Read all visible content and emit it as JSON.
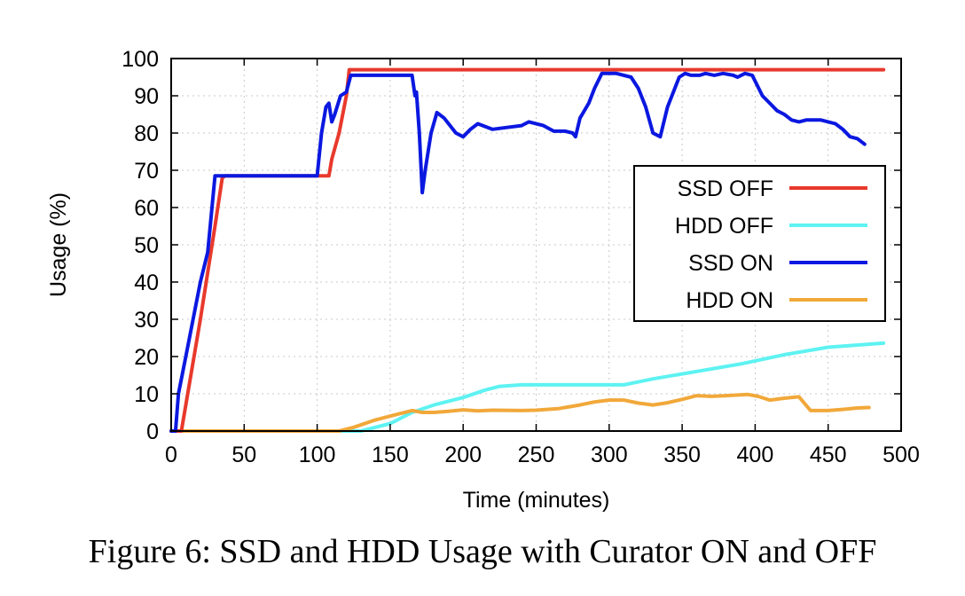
{
  "caption": "Figure 6: SSD and HDD Usage with Curator ON and OFF",
  "chart_data": {
    "type": "line",
    "xlabel": "Time (minutes)",
    "ylabel": "Usage (%)",
    "xlim": [
      0,
      500
    ],
    "ylim": [
      0,
      100
    ],
    "xticks": [
      0,
      50,
      100,
      150,
      200,
      250,
      300,
      350,
      400,
      450,
      500
    ],
    "yticks": [
      0,
      10,
      20,
      30,
      40,
      50,
      60,
      70,
      80,
      90,
      100
    ],
    "grid": true,
    "legend_position": "right",
    "series": [
      {
        "name": "SSD OFF",
        "color": "#e8392c",
        "points": [
          [
            0,
            0
          ],
          [
            7,
            0
          ],
          [
            20,
            30
          ],
          [
            30,
            55
          ],
          [
            35,
            68
          ],
          [
            37,
            68.5
          ],
          [
            100,
            68.5
          ],
          [
            108,
            68.5
          ],
          [
            110,
            73
          ],
          [
            115,
            80
          ],
          [
            120,
            90
          ],
          [
            122,
            97
          ],
          [
            488,
            97
          ]
        ]
      },
      {
        "name": "HDD OFF",
        "color": "#5ef2f2",
        "points": [
          [
            0,
            0
          ],
          [
            130,
            0
          ],
          [
            150,
            2
          ],
          [
            165,
            5
          ],
          [
            180,
            7
          ],
          [
            200,
            9
          ],
          [
            215,
            11
          ],
          [
            225,
            12
          ],
          [
            240,
            12.4
          ],
          [
            300,
            12.4
          ],
          [
            310,
            12.4
          ],
          [
            330,
            14
          ],
          [
            360,
            16
          ],
          [
            390,
            18
          ],
          [
            420,
            20.5
          ],
          [
            450,
            22.5
          ],
          [
            488,
            23.6
          ]
        ]
      },
      {
        "name": "SSD ON",
        "color": "#0b18e0",
        "points": [
          [
            0,
            0
          ],
          [
            3,
            0
          ],
          [
            5,
            10
          ],
          [
            10,
            20
          ],
          [
            20,
            40
          ],
          [
            25,
            48
          ],
          [
            30,
            68.5
          ],
          [
            35,
            68.5
          ],
          [
            100,
            68.5
          ],
          [
            103,
            80
          ],
          [
            106,
            87
          ],
          [
            108,
            88
          ],
          [
            110,
            83
          ],
          [
            112,
            85
          ],
          [
            116,
            90
          ],
          [
            120,
            91
          ],
          [
            123,
            95.5
          ],
          [
            125,
            95.5
          ],
          [
            150,
            95.5
          ],
          [
            165,
            95.5
          ],
          [
            167,
            90
          ],
          [
            168,
            91
          ],
          [
            170,
            80
          ],
          [
            172,
            64
          ],
          [
            174,
            70
          ],
          [
            178,
            80
          ],
          [
            182,
            85.5
          ],
          [
            187,
            84
          ],
          [
            195,
            80
          ],
          [
            200,
            79
          ],
          [
            205,
            81
          ],
          [
            210,
            82.5
          ],
          [
            220,
            81
          ],
          [
            230,
            81.5
          ],
          [
            240,
            82
          ],
          [
            245,
            83
          ],
          [
            255,
            82
          ],
          [
            262,
            80.5
          ],
          [
            270,
            80.5
          ],
          [
            275,
            80
          ],
          [
            277,
            79
          ],
          [
            280,
            84
          ],
          [
            286,
            88
          ],
          [
            290,
            92
          ],
          [
            295,
            96
          ],
          [
            305,
            96
          ],
          [
            315,
            95
          ],
          [
            320,
            92
          ],
          [
            325,
            87
          ],
          [
            330,
            80
          ],
          [
            335,
            79
          ],
          [
            340,
            87
          ],
          [
            348,
            95
          ],
          [
            352,
            96
          ],
          [
            356,
            95.5
          ],
          [
            362,
            95.5
          ],
          [
            366,
            96
          ],
          [
            372,
            95.5
          ],
          [
            378,
            96
          ],
          [
            385,
            95.5
          ],
          [
            388,
            95
          ],
          [
            393,
            96
          ],
          [
            398,
            95.5
          ],
          [
            405,
            90
          ],
          [
            410,
            88
          ],
          [
            415,
            86
          ],
          [
            420,
            85
          ],
          [
            425,
            83.5
          ],
          [
            430,
            83
          ],
          [
            435,
            83.5
          ],
          [
            445,
            83.5
          ],
          [
            455,
            82.5
          ],
          [
            460,
            81
          ],
          [
            465,
            79
          ],
          [
            470,
            78.5
          ],
          [
            475,
            77
          ]
        ]
      },
      {
        "name": "HDD ON",
        "color": "#f1a83a",
        "points": [
          [
            0,
            0
          ],
          [
            115,
            0
          ],
          [
            125,
            1
          ],
          [
            140,
            3
          ],
          [
            155,
            4.5
          ],
          [
            165,
            5.5
          ],
          [
            172,
            5
          ],
          [
            180,
            5
          ],
          [
            190,
            5.3
          ],
          [
            200,
            5.7
          ],
          [
            210,
            5.4
          ],
          [
            220,
            5.6
          ],
          [
            240,
            5.5
          ],
          [
            250,
            5.6
          ],
          [
            265,
            6
          ],
          [
            280,
            7
          ],
          [
            290,
            7.8
          ],
          [
            300,
            8.3
          ],
          [
            310,
            8.3
          ],
          [
            320,
            7.5
          ],
          [
            330,
            7
          ],
          [
            340,
            7.6
          ],
          [
            350,
            8.5
          ],
          [
            360,
            9.5
          ],
          [
            370,
            9.3
          ],
          [
            380,
            9.5
          ],
          [
            395,
            9.8
          ],
          [
            402,
            9.3
          ],
          [
            410,
            8.3
          ],
          [
            420,
            8.8
          ],
          [
            430,
            9.2
          ],
          [
            438,
            5.5
          ],
          [
            450,
            5.5
          ],
          [
            460,
            5.8
          ],
          [
            470,
            6.2
          ],
          [
            478,
            6.3
          ]
        ]
      }
    ]
  }
}
